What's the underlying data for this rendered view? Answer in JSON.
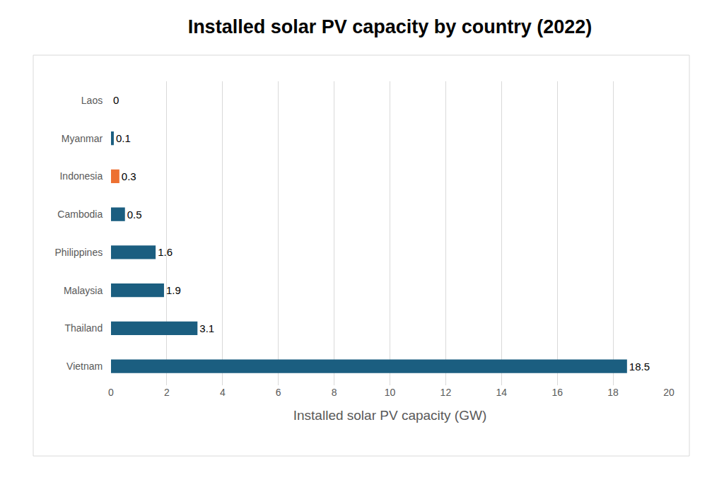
{
  "chart_data": {
    "type": "bar",
    "orientation": "horizontal",
    "title": "Installed solar PV capacity by country (2022)",
    "x_label": "Installed solar PV capacity (GW)",
    "categories": [
      "Laos",
      "Myanmar",
      "Indonesia",
      "Cambodia",
      "Philippines",
      "Malaysia",
      "Thailand",
      "Vietnam"
    ],
    "values": [
      0,
      0.1,
      0.3,
      0.5,
      1.6,
      1.9,
      3.1,
      18.5
    ],
    "colors": [
      "#1b5e80",
      "#1b5e80",
      "#ed7031",
      "#1b5e80",
      "#1b5e80",
      "#1b5e80",
      "#1b5e80",
      "#1b5e80"
    ],
    "xlim": [
      0,
      20
    ],
    "xticks": [
      0,
      2,
      4,
      6,
      8,
      10,
      12,
      14,
      16,
      18,
      20
    ],
    "grid": true,
    "data_labels": true
  }
}
